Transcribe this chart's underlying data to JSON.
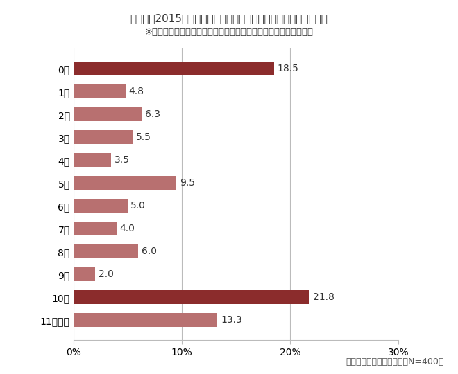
{
  "title_line1": "あなたは2015年、有給休暇を利用して何日会社を休みましたか？",
  "title_line2": "※有給休暇以外の特別休暇（夏季・冬季休暇など）は含みません。",
  "categories": [
    "0日",
    "1日",
    "2日",
    "3日",
    "4日",
    "5日",
    "6日",
    "7日",
    "8日",
    "9日",
    "10日",
    "11日以上"
  ],
  "values": [
    18.5,
    4.8,
    6.3,
    5.5,
    3.5,
    9.5,
    5.0,
    4.0,
    6.0,
    2.0,
    21.8,
    13.3
  ],
  "bar_colors": [
    "#8b2c2c",
    "#b87070",
    "#b87070",
    "#b87070",
    "#b87070",
    "#b87070",
    "#b87070",
    "#b87070",
    "#b87070",
    "#b87070",
    "#8b2c2c",
    "#b87070"
  ],
  "xlim": [
    0,
    30
  ],
  "xticks": [
    0,
    10,
    20,
    30
  ],
  "xticklabels": [
    "0%",
    "10%",
    "20%",
    "30%"
  ],
  "footnote": "マンパワーグループ調べ（N=400）",
  "background_color": "#ffffff",
  "grid_color": "#bbbbbb",
  "label_fontsize": 10,
  "title_fontsize": 11,
  "value_fontsize": 10
}
